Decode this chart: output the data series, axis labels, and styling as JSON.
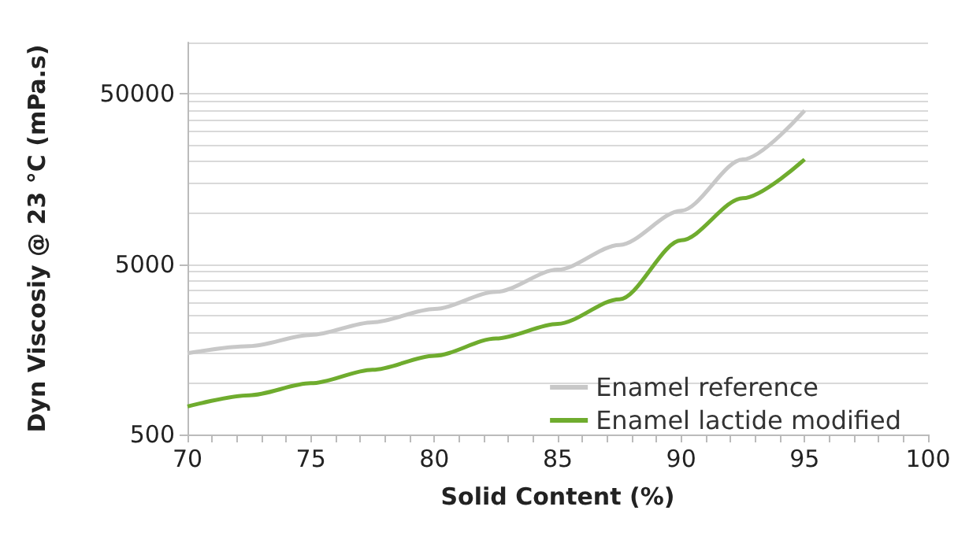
{
  "chart_data": {
    "type": "line",
    "xlabel": "Solid Content (%)",
    "ylabel": "Dyn Viscosiy @ 23 °C (mPa.s)",
    "x": [
      70,
      72.5,
      75,
      77.5,
      80,
      82.5,
      85,
      87.5,
      90,
      92.5,
      95
    ],
    "series": [
      {
        "name": "Enamel reference",
        "color": "#c8c8c8",
        "values": [
          1500,
          1650,
          1920,
          2280,
          2730,
          3440,
          4640,
          6480,
          10300,
          20600,
          39900
        ]
      },
      {
        "name": "Enamel lactide modified",
        "color": "#6fac2e",
        "values": [
          730,
          850,
          1000,
          1200,
          1450,
          1830,
          2230,
          3110,
          6900,
          12200,
          20600
        ]
      }
    ],
    "xlim": [
      70,
      100
    ],
    "xticks": [
      70,
      75,
      80,
      85,
      90,
      95,
      100
    ],
    "ylim": [
      500,
      100000
    ],
    "yticks": [
      500,
      5000,
      50000
    ],
    "log": "y",
    "grid": "y",
    "legend": "bottom right",
    "marker": "none",
    "line_style": "solid"
  }
}
